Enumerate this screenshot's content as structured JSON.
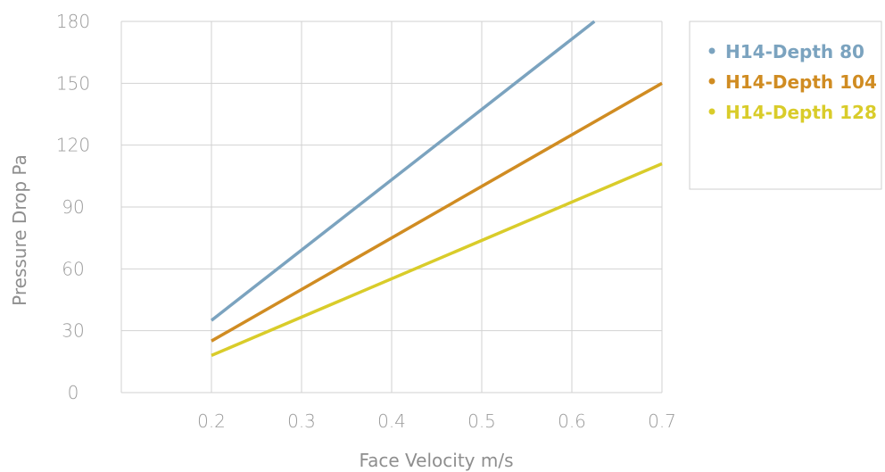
{
  "chart_data": {
    "type": "line",
    "xlabel": "Face Velocity m/s",
    "ylabel": "Pressure Drop Pa",
    "xlim": [
      0.1,
      0.7
    ],
    "ylim": [
      0,
      180
    ],
    "x_ticks": [
      "0.2",
      "0.3",
      "0.4",
      "0.5",
      "0.6",
      "0.7"
    ],
    "y_ticks": [
      "0",
      "30",
      "60",
      "90",
      "120",
      "150",
      "180"
    ],
    "grid": true,
    "legend_position": "top-right",
    "series": [
      {
        "name": "H14-Depth 80",
        "color": "#7ba3bf",
        "x": [
          0.2,
          0.625
        ],
        "y": [
          35,
          180
        ]
      },
      {
        "name": "H14-Depth 104",
        "color": "#d08c22",
        "x": [
          0.2,
          0.7
        ],
        "y": [
          25,
          150
        ]
      },
      {
        "name": "H14-Depth 128",
        "color": "#d9cc2a",
        "x": [
          0.2,
          0.7
        ],
        "y": [
          18,
          111
        ]
      }
    ]
  }
}
